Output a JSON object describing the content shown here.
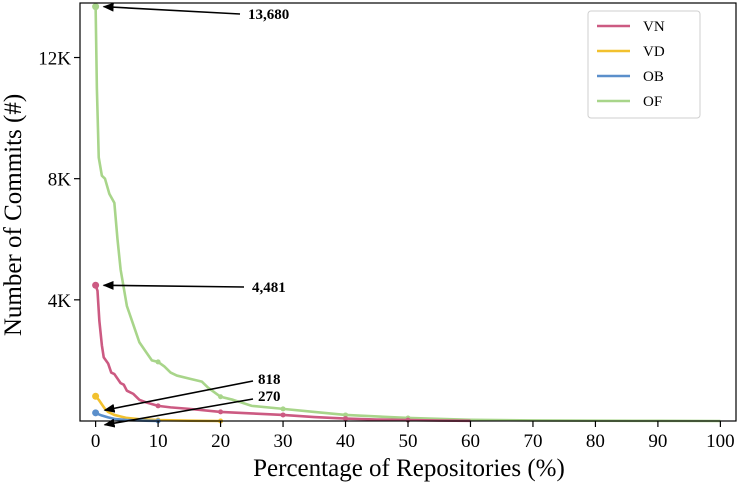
{
  "chart_data": {
    "type": "line",
    "title": "",
    "xlabel": "Percentage of Repositories (%)",
    "ylabel": "Number of Commits (#)",
    "xlim": [
      -2.5,
      102.5
    ],
    "ylim": [
      0,
      13800
    ],
    "xticks": [
      0,
      10,
      20,
      30,
      40,
      50,
      60,
      70,
      80,
      90,
      100
    ],
    "xtick_labels": [
      "0",
      "10",
      "20",
      "30",
      "40",
      "50",
      "60",
      "70",
      "80",
      "90",
      "100"
    ],
    "yticks": [
      4000,
      8000,
      12000
    ],
    "ytick_labels": [
      "4K",
      "8K",
      "12K"
    ],
    "grid": false,
    "legend_position": "top-right",
    "series": [
      {
        "name": "VN",
        "color": "#cc5a82",
        "x": [
          0,
          0.3,
          0.6,
          1.0,
          1.3,
          2,
          2.5,
          3,
          4,
          4.5,
          5,
          6,
          7,
          8,
          10,
          12,
          15,
          20,
          25,
          30,
          35,
          40,
          45,
          50,
          55,
          60
        ],
        "y": [
          4481,
          4300,
          3300,
          2500,
          2100,
          1900,
          1600,
          1550,
          1250,
          1200,
          1000,
          900,
          700,
          620,
          500,
          450,
          400,
          300,
          250,
          200,
          130,
          80,
          50,
          30,
          15,
          5
        ]
      },
      {
        "name": "VD",
        "color": "#f2c12e",
        "x": [
          0,
          0.5,
          1.0,
          1.5,
          2,
          3,
          4,
          5,
          7,
          10,
          15,
          20
        ],
        "y": [
          818,
          700,
          550,
          400,
          300,
          200,
          150,
          100,
          60,
          30,
          10,
          0
        ]
      },
      {
        "name": "OB",
        "color": "#5b8fcb",
        "x": [
          0,
          0.5,
          1.0,
          2,
          3,
          5,
          8,
          10
        ],
        "y": [
          270,
          220,
          180,
          120,
          70,
          30,
          10,
          0
        ]
      },
      {
        "name": "OF",
        "color": "#a8d58a",
        "x": [
          0,
          0.2,
          0.5,
          1.0,
          1.5,
          2.2,
          3,
          3.5,
          4,
          5,
          5.5,
          6,
          7,
          8,
          9,
          10,
          11,
          12,
          13,
          15,
          17,
          18,
          20,
          22,
          25,
          30,
          35,
          40,
          45,
          50,
          60,
          70,
          80,
          90,
          100
        ],
        "y": [
          13680,
          11000,
          8700,
          8100,
          8000,
          7500,
          7200,
          6000,
          5000,
          3800,
          3500,
          3200,
          2600,
          2300,
          2000,
          1950,
          1800,
          1600,
          1500,
          1400,
          1300,
          1100,
          800,
          700,
          500,
          400,
          300,
          200,
          150,
          100,
          40,
          20,
          10,
          5,
          0
        ]
      }
    ],
    "annotations": [
      {
        "text": "13,680",
        "series": "OF",
        "x": 0,
        "y": 13680
      },
      {
        "text": "4,481",
        "series": "VN",
        "x": 0,
        "y": 4481
      },
      {
        "text": "818",
        "series": "VD",
        "x": 0,
        "y": 818
      },
      {
        "text": "270",
        "series": "OB",
        "x": 0,
        "y": 270
      }
    ]
  }
}
